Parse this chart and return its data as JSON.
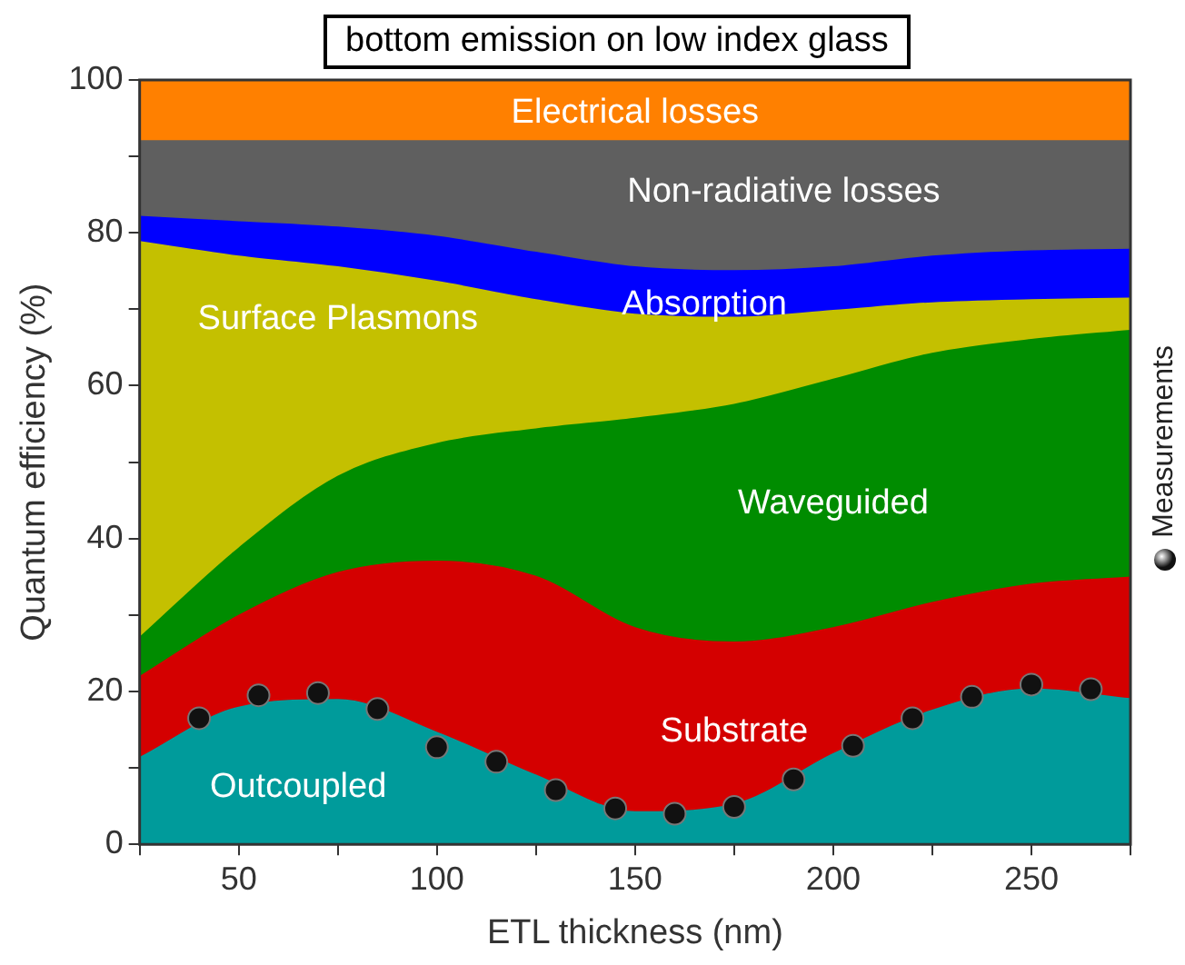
{
  "chart_data": {
    "type": "area",
    "stacked": true,
    "title": "bottom emission on low index glass",
    "xlabel": "ETL thickness (nm)",
    "ylabel": "Quantum efficiency (%)",
    "x": [
      25,
      50,
      75,
      100,
      125,
      150,
      175,
      200,
      225,
      250,
      275
    ],
    "xlim": [
      25,
      275
    ],
    "xticks": [
      {
        "value": 25,
        "label": null
      },
      50,
      {
        "value": 75,
        "label": null
      },
      100,
      {
        "value": 125,
        "label": null
      },
      150,
      {
        "value": 175,
        "label": null
      },
      200,
      {
        "value": 225,
        "label": null
      },
      250,
      {
        "value": 275,
        "label": null
      }
    ],
    "ylim": [
      0,
      100
    ],
    "yticks": [
      0,
      {
        "value": 10,
        "label": null
      },
      20,
      {
        "value": 30,
        "label": null
      },
      40,
      {
        "value": 50,
        "label": null
      },
      60,
      {
        "value": 70,
        "label": null
      },
      80,
      {
        "value": 90,
        "label": null
      },
      100
    ],
    "legend": "right",
    "series": [
      {
        "name": "Outcoupled",
        "color": "#009b9b",
        "values": [
          11.3,
          17.9,
          18.9,
          14.6,
          9,
          4.2,
          5.2,
          11.8,
          17.5,
          20.3,
          19
        ]
      },
      {
        "name": "Substrate",
        "color": "#d40000",
        "values": [
          10.6,
          12,
          16.6,
          22.4,
          26,
          24.1,
          21.2,
          16.5,
          14.1,
          13.7,
          15.9
        ]
      },
      {
        "name": "Waveguided",
        "color": "#008c00",
        "values": [
          5.1,
          8.8,
          12.6,
          15.4,
          19.3,
          27.4,
          31.1,
          32.5,
          32.6,
          32,
          32.3
        ]
      },
      {
        "name": "Surface Plasmons",
        "color": "#c4c000",
        "values": [
          51.8,
          38.2,
          27.4,
          21.2,
          16.9,
          13.6,
          11.4,
          9,
          6.6,
          5.2,
          4.2
        ]
      },
      {
        "name": "Absorption",
        "color": "#0000ff",
        "values": [
          3.3,
          4.5,
          5.2,
          5.9,
          6.2,
          6.2,
          6.1,
          5.7,
          6.1,
          6.4,
          6.4
        ]
      },
      {
        "name": "Non-radiative losses",
        "color": "#5f5f5f",
        "values": [
          9.9,
          10.6,
          11.3,
          12.5,
          14.6,
          16.5,
          17,
          16.5,
          15.1,
          14.4,
          14.2
        ]
      },
      {
        "name": "Electrical losses",
        "color": "#ff8000",
        "values": [
          8,
          8,
          8,
          8,
          8,
          8,
          8,
          8,
          8,
          8,
          8
        ]
      },
      {
        "name": "Measurements",
        "type": "scatter",
        "marker": "circle",
        "color": "#111111",
        "x": [
          40,
          55,
          70,
          85,
          100,
          115,
          130,
          145,
          160,
          175,
          190,
          205,
          220,
          235,
          250,
          265
        ],
        "values": [
          16.5,
          19.5,
          19.8,
          17.7,
          12.7,
          10.8,
          7.1,
          4.7,
          4,
          4.9,
          8.5,
          12.9,
          16.5,
          19.3,
          20.9,
          20.3
        ]
      }
    ]
  }
}
